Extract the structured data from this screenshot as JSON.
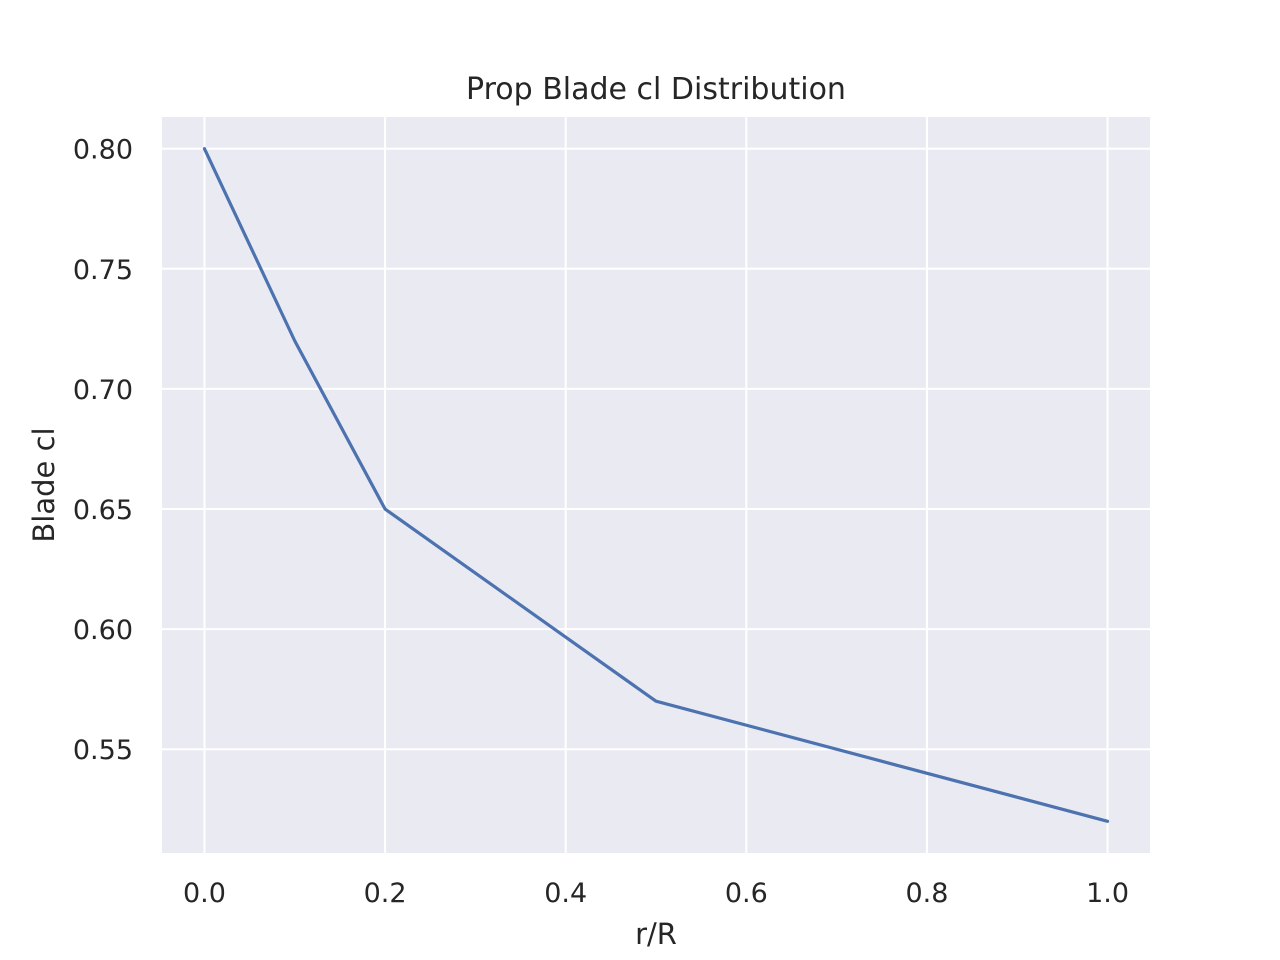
{
  "chart_data": {
    "type": "line",
    "title": "Prop Blade cl Distribution",
    "xlabel": "r/R",
    "ylabel": "Blade cl",
    "xlim": [
      -0.047,
      1.047
    ],
    "ylim": [
      0.5068,
      0.8132
    ],
    "xticks": [
      0.0,
      0.2,
      0.4,
      0.6,
      0.8,
      1.0
    ],
    "xtick_labels": [
      "0.0",
      "0.2",
      "0.4",
      "0.6",
      "0.8",
      "1.0"
    ],
    "yticks": [
      0.55,
      0.6,
      0.65,
      0.7,
      0.75,
      0.8
    ],
    "ytick_labels": [
      "0.55",
      "0.60",
      "0.65",
      "0.70",
      "0.75",
      "0.80"
    ],
    "grid": true,
    "series": [
      {
        "x": [
          0.0,
          0.1,
          0.2,
          0.5,
          1.0
        ],
        "values": [
          0.8,
          0.72,
          0.65,
          0.57,
          0.52
        ]
      }
    ],
    "colors": {
      "line": "#4c72b0",
      "plot_background": "#eaeaf2",
      "grid": "#ffffff",
      "text": "#262626"
    }
  }
}
